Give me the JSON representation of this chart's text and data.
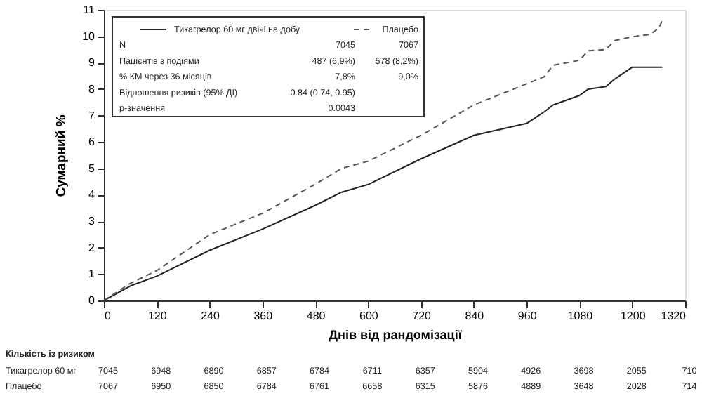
{
  "chart_data": {
    "type": "line",
    "xlabel": "Днів від рандомізації",
    "ylabel": "Сумарний %",
    "xlim": [
      0,
      1320
    ],
    "xticks": [
      0,
      120,
      240,
      360,
      480,
      600,
      720,
      840,
      960,
      1080,
      1200,
      1320
    ],
    "ylim": [
      0,
      11
    ],
    "yticks": [
      0,
      1,
      2,
      3,
      4,
      5,
      6,
      7,
      8,
      9,
      10,
      11
    ],
    "grid": false,
    "legend": "top left",
    "series": [
      {
        "name": "Тикагрелор 60 мг двічі на добу",
        "color": "#222222",
        "line_style": "solid",
        "x": [
          0,
          60,
          120,
          240,
          360,
          480,
          540,
          600,
          720,
          840,
          960,
          1000,
          1020,
          1080,
          1100,
          1140,
          1160,
          1200,
          1268
        ],
        "values": [
          0,
          0.55,
          0.92,
          1.9,
          2.7,
          3.6,
          4.1,
          4.39,
          5.36,
          6.25,
          6.7,
          7.14,
          7.4,
          7.76,
          8.0,
          8.1,
          8.38,
          8.83,
          8.83
        ]
      },
      {
        "name": "Плацебо",
        "color": "#555555",
        "line_style": "dashed",
        "x": [
          0,
          60,
          120,
          240,
          360,
          480,
          540,
          600,
          720,
          840,
          960,
          1000,
          1020,
          1080,
          1100,
          1140,
          1160,
          1200,
          1240,
          1260,
          1268
        ],
        "values": [
          0,
          0.65,
          1.13,
          2.49,
          3.3,
          4.4,
          5.0,
          5.27,
          6.25,
          7.4,
          8.2,
          8.47,
          8.9,
          9.09,
          9.45,
          9.5,
          9.84,
          9.98,
          10.07,
          10.3,
          10.6
        ]
      }
    ],
    "annotations": [
      "N",
      "7045",
      "7067",
      "Пацієнтів з подіями",
      "487 (6,9%)",
      "578 (8,2%)",
      "% КМ через 36 місяців",
      "7,8%",
      "9,0%",
      "Відношення ризиків (95% ДІ)",
      "0.84 (0.74, 0.95)",
      "p-значення",
      "0.0043",
      "Кількість із ризиком",
      "Тикагрелор 60 мг",
      "7045",
      "6948",
      "6890",
      "6857",
      "6784",
      "6711",
      "6357",
      "5904",
      "4926",
      "3698",
      "2055",
      "710",
      "Плацебо",
      "7067",
      "6950",
      "6850",
      "6784",
      "6761",
      "6658",
      "6315",
      "5876",
      "4889",
      "3648",
      "2028",
      "714"
    ]
  }
}
